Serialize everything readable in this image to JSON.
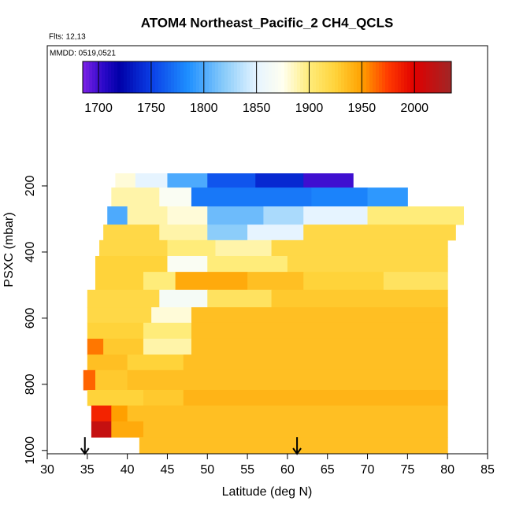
{
  "chart_data": {
    "type": "heatmap",
    "title": "ATOM4 Northeast_Pacific_2 CH4_QCLS",
    "subtitle": "Flts: 12,13",
    "annotation": "MMDD: 0519,0521",
    "xlabel": "Latitude (deg N)",
    "ylabel": "PSXC (mbar)",
    "xlim": [
      30,
      85
    ],
    "xticks": [
      30,
      35,
      40,
      45,
      50,
      55,
      60,
      65,
      70,
      75,
      80,
      85
    ],
    "ylim": [
      1010,
      -224
    ],
    "yticks": [
      200,
      400,
      600,
      800,
      1000
    ],
    "clim": [
      1685,
      2035
    ],
    "cticks": [
      1700,
      1750,
      1800,
      1850,
      1900,
      1950,
      2000
    ],
    "colormap": [
      [
        1685,
        "#7d22e6"
      ],
      [
        1705,
        "#2a08c8"
      ],
      [
        1720,
        "#0000a8"
      ],
      [
        1750,
        "#0a3ee6"
      ],
      [
        1785,
        "#1e8fff"
      ],
      [
        1820,
        "#8ccdfa"
      ],
      [
        1850,
        "#e6f4ff"
      ],
      [
        1875,
        "#fffff0"
      ],
      [
        1900,
        "#ffec7a"
      ],
      [
        1925,
        "#ffd33a"
      ],
      [
        1950,
        "#ffa000"
      ],
      [
        1975,
        "#ff3a00"
      ],
      [
        2000,
        "#e00000"
      ],
      [
        2035,
        "#a02626"
      ]
    ],
    "arrows": [
      34.7,
      61.2
    ],
    "rows": [
      {
        "p": [
          162,
          205
        ],
        "segments": [
          [
            38.5,
            41,
            1880
          ],
          [
            41,
            45,
            1850
          ],
          [
            45,
            50,
            1800
          ],
          [
            50,
            56,
            1760
          ],
          [
            56,
            62,
            1740
          ],
          [
            62,
            68.2,
            1700
          ]
        ]
      },
      {
        "p": [
          205,
          262
        ],
        "segments": [
          [
            38,
            44,
            1890
          ],
          [
            44,
            48,
            1870
          ],
          [
            48,
            63,
            1775
          ],
          [
            63,
            70,
            1780
          ],
          [
            70,
            75,
            1790
          ]
        ]
      },
      {
        "p": [
          262,
          317
        ],
        "segments": [
          [
            37.5,
            40,
            1800
          ],
          [
            40,
            45,
            1890
          ],
          [
            45,
            50,
            1880
          ],
          [
            50,
            57,
            1810
          ],
          [
            57,
            62,
            1830
          ],
          [
            62,
            70,
            1850
          ],
          [
            70,
            82,
            1900
          ]
        ]
      },
      {
        "p": [
          317,
          364
        ],
        "segments": [
          [
            37,
            44,
            1920
          ],
          [
            44,
            50,
            1890
          ],
          [
            50,
            55,
            1820
          ],
          [
            55,
            62,
            1850
          ],
          [
            62,
            81,
            1920
          ]
        ]
      },
      {
        "p": [
          364,
          412
        ],
        "segments": [
          [
            36.5,
            45,
            1920
          ],
          [
            45,
            51,
            1900
          ],
          [
            51,
            58,
            1890
          ],
          [
            58,
            80,
            1920
          ]
        ]
      },
      {
        "p": [
          412,
          460
        ],
        "segments": [
          [
            36,
            45,
            1925
          ],
          [
            45,
            50,
            1870
          ],
          [
            50,
            60,
            1900
          ],
          [
            60,
            80,
            1920
          ]
        ]
      },
      {
        "p": [
          460,
          514
        ],
        "segments": [
          [
            36,
            42,
            1925
          ],
          [
            42,
            46,
            1900
          ],
          [
            46,
            55,
            1945
          ],
          [
            55,
            62,
            1935
          ],
          [
            62,
            72,
            1925
          ],
          [
            72,
            80,
            1910
          ]
        ]
      },
      {
        "p": [
          514,
          567
        ],
        "segments": [
          [
            35,
            44,
            1920
          ],
          [
            44,
            50,
            1865
          ],
          [
            50,
            58,
            1910
          ],
          [
            58,
            80,
            1930
          ]
        ]
      },
      {
        "p": [
          567,
          614
        ],
        "segments": [
          [
            35,
            43,
            1920
          ],
          [
            43,
            48,
            1880
          ],
          [
            48,
            80,
            1935
          ]
        ]
      },
      {
        "p": [
          614,
          662
        ],
        "segments": [
          [
            35,
            42,
            1925
          ],
          [
            42,
            48,
            1900
          ],
          [
            48,
            80,
            1935
          ]
        ]
      },
      {
        "p": [
          662,
          710
        ],
        "segments": [
          [
            35,
            37,
            1960
          ],
          [
            37,
            42,
            1930
          ],
          [
            42,
            48,
            1890
          ],
          [
            48,
            80,
            1935
          ]
        ]
      },
      {
        "p": [
          710,
          757
        ],
        "segments": [
          [
            35,
            40,
            1935
          ],
          [
            40,
            47,
            1925
          ],
          [
            47,
            80,
            1935
          ]
        ]
      },
      {
        "p": [
          757,
          817
        ],
        "segments": [
          [
            34.5,
            36,
            1965
          ],
          [
            36,
            40,
            1930
          ],
          [
            40,
            80,
            1935
          ]
        ]
      },
      {
        "p": [
          817,
          864
        ],
        "segments": [
          [
            35,
            42,
            1925
          ],
          [
            42,
            47,
            1930
          ],
          [
            47,
            80,
            1940
          ]
        ]
      },
      {
        "p": [
          864,
          912
        ],
        "segments": [
          [
            35.5,
            38,
            1985
          ],
          [
            38,
            40,
            1950
          ],
          [
            40,
            80,
            1935
          ]
        ]
      },
      {
        "p": [
          912,
          960
        ],
        "segments": [
          [
            35.5,
            38,
            2015
          ],
          [
            38,
            42,
            1945
          ],
          [
            42,
            80,
            1935
          ]
        ]
      },
      {
        "p": [
          960,
          1010
        ],
        "segments": [
          [
            41.5,
            80,
            1935
          ]
        ]
      }
    ]
  }
}
